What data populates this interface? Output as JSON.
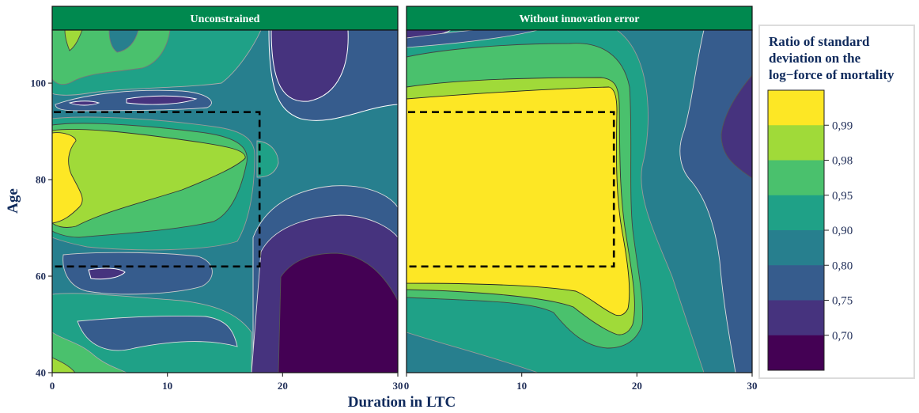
{
  "chart_data": {
    "type": "heatmap",
    "subtype": "filled-contour",
    "xlabel": "Duration in LTC",
    "ylabel": "Age",
    "xlim": [
      0,
      30
    ],
    "ylim": [
      40,
      111
    ],
    "x_ticks": [
      0,
      10,
      20,
      30
    ],
    "y_ticks": [
      40,
      60,
      80,
      100
    ],
    "grid": false,
    "strip_color": "#00894f",
    "panels": [
      {
        "title": "Unconstrained",
        "highlight_rectangle": {
          "x": [
            0,
            18
          ],
          "y": [
            62,
            94
          ]
        },
        "dominant_regions": [
          {
            "label": "0,99+",
            "x_range": [
              0,
              2
            ],
            "y_range": [
              71,
              89
            ]
          },
          {
            "label": "0,99",
            "x_range": [
              1,
              16
            ],
            "y_range": [
              74,
              88
            ]
          },
          {
            "label": "0,70-",
            "x_range": [
              19,
              30
            ],
            "y_range": [
              40,
              64
            ]
          },
          {
            "label": "0,70",
            "x_range": [
              19,
              30
            ],
            "y_range": [
              93,
              111
            ]
          },
          {
            "label": "0,80",
            "x_range": [
              0,
              18
            ],
            "y_range": [
              40,
              62
            ]
          }
        ]
      },
      {
        "title": "Without innovation error",
        "highlight_rectangle": {
          "x": [
            0,
            18
          ],
          "y": [
            62,
            94
          ]
        },
        "dominant_regions": [
          {
            "label": "0,99+",
            "x_range": [
              0,
              19
            ],
            "y_range": [
              57,
              94
            ]
          },
          {
            "label": "0,99",
            "x_range": [
              0,
              19
            ],
            "y_range": [
              54,
              98
            ]
          },
          {
            "label": "0,95",
            "x_range": [
              0,
              20
            ],
            "y_range": [
              52,
              101
            ]
          },
          {
            "label": "0,75",
            "x_range": [
              23,
              30
            ],
            "y_range": [
              40,
              111
            ]
          },
          {
            "label": "0,70",
            "x_range": [
              27,
              30
            ],
            "y_range": [
              77,
              94
            ]
          }
        ]
      }
    ],
    "legend": {
      "title_lines": [
        "Ratio of standard",
        "deviation on the",
        "log−force of mortality"
      ],
      "placement": "right",
      "labels": [
        "0,99",
        "0,98",
        "0,95",
        "0,90",
        "0,80",
        "0,75",
        "0,70"
      ],
      "colors": [
        "#fde725",
        "#a0da39",
        "#4ac16d",
        "#1fa187",
        "#277f8e",
        "#365c8d",
        "#46337e",
        "#440154"
      ]
    }
  }
}
